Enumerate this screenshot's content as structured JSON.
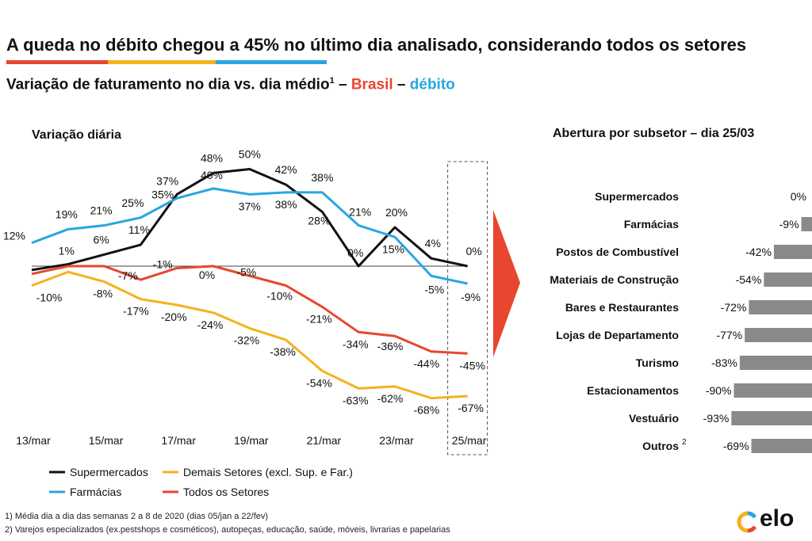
{
  "header": {
    "title": "A queda no débito chegou a 45% no último dia analisado, considerando todos os setores",
    "subtitle_main": "Variação de faturamento no dia vs. dia médio",
    "subtitle_sup": "1",
    "subtitle_dash1": " – ",
    "subtitle_brasil": "Brasil",
    "subtitle_dash2": " – ",
    "subtitle_debito": "débito",
    "colors": {
      "red": "#e8462f",
      "yellow": "#f5b21b",
      "blue": "#2aa6e0"
    }
  },
  "footnotes": {
    "note1": "1)  Média dia a dia das semanas 2 a 8 de 2020 (dias 05/jan a 22/fev)",
    "note2": "2)  Varejos especializados (ex.pestshops e cosméticos), autopeças, educação, saúde, móveis, livrarias e papelarias"
  },
  "logo": {
    "text": "elo"
  },
  "chart_data": [
    {
      "type": "line",
      "title": "Variação diária",
      "x_ticks": [
        "13/mar",
        "15/mar",
        "17/mar",
        "19/mar",
        "21/mar",
        "23/mar",
        "25/mar"
      ],
      "x": [
        13,
        14,
        15,
        16,
        17,
        18,
        19,
        20,
        21,
        22,
        23,
        24,
        25
      ],
      "highlight_x": 25,
      "series": [
        {
          "name": "Supermercados",
          "color": "#111111",
          "values": [
            -2,
            1,
            6,
            11,
            37,
            48,
            50,
            42,
            28,
            0,
            20,
            4,
            0
          ],
          "labels": [
            "",
            "1%",
            "6%",
            "11%",
            "37%",
            "48%",
            "50%",
            "42%",
            "28%",
            "0%",
            "20%",
            "4%",
            "0%"
          ]
        },
        {
          "name": "Farmácias",
          "color": "#2aa6e0",
          "values": [
            12,
            19,
            21,
            25,
            35,
            40,
            37,
            38,
            38,
            21,
            15,
            -5,
            -9
          ],
          "labels": [
            "12%",
            "19%",
            "21%",
            "25%",
            "35%",
            "40%",
            "37%",
            "38%",
            "38%",
            "21%",
            "15%",
            "-5%",
            "-9%"
          ]
        },
        {
          "name": "Demais Setores (excl. Sup. e Far.)",
          "color": "#f5b21b",
          "values": [
            -10,
            -3,
            -8,
            -17,
            -20,
            -24,
            -32,
            -38,
            -54,
            -63,
            -62,
            -68,
            -67
          ],
          "labels": [
            "-10%",
            "",
            "-8%",
            "-17%",
            "-20%",
            "-24%",
            "-32%",
            "-38%",
            "-54%",
            "-63%",
            "-62%",
            "-68%",
            "-67%"
          ]
        },
        {
          "name": "Todos os Setores",
          "color": "#e8462f",
          "values": [
            -4,
            0,
            0,
            -7,
            -1,
            0,
            -5,
            -10,
            -21,
            -34,
            -36,
            -44,
            -45
          ],
          "labels": [
            "",
            "",
            "",
            "-7%",
            "-1%",
            "0%",
            "-5%",
            "-10%",
            "-21%",
            "-34%",
            "-36%",
            "-44%",
            "-45%"
          ]
        }
      ],
      "legend": [
        "Supermercados",
        "Demais Setores (excl. Sup. e Far.)",
        "Farmácias",
        "Todos os Setores"
      ]
    },
    {
      "type": "bar",
      "orientation": "horizontal",
      "title": "Abertura por subsetor – dia 25/03",
      "categories": [
        "Supermercados",
        "Farmácias",
        "Postos de Combustível",
        "Materiais de Construção",
        "Bares e Restaurantes",
        "Lojas de Departamento",
        "Turismo",
        "Estacionamentos",
        "Vestuário",
        "Outros"
      ],
      "category_sups": [
        "",
        "",
        "",
        "",
        "",
        "",
        "",
        "",
        "",
        "2"
      ],
      "values": [
        0,
        -9,
        -42,
        -54,
        -72,
        -77,
        -83,
        -90,
        -93,
        -69
      ],
      "value_labels": [
        "0%",
        "-9%",
        "-42%",
        "-54%",
        "-72%",
        "-77%",
        "-83%",
        "-90%",
        "-93%",
        "-69%"
      ],
      "bar_color": "#8a8a8a"
    }
  ]
}
